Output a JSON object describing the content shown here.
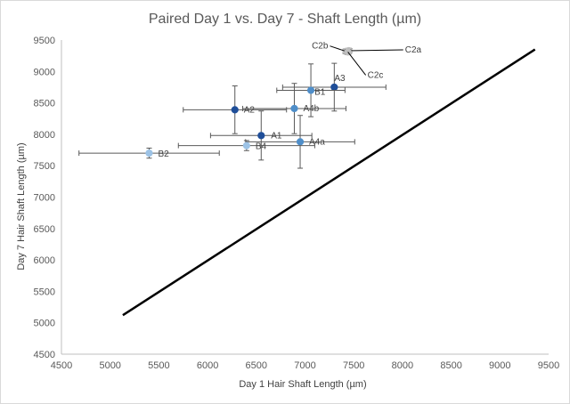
{
  "chart_data": {
    "type": "scatter",
    "title": "Paired Day 1 vs. Day 7 - Shaft Length (µm)",
    "xlabel": "Day 1 Hair Shaft Length (µm)",
    "ylabel": "Day 7 Hair Shaft Length (µm)",
    "xlim": [
      4500,
      9500
    ],
    "ylim": [
      4500,
      9500
    ],
    "xticks": [
      "4500",
      "5000",
      "5500",
      "6000",
      "6500",
      "7000",
      "7500",
      "8000",
      "8500",
      "9000",
      "9500"
    ],
    "yticks": [
      "4500",
      "5000",
      "5500",
      "6000",
      "6500",
      "7000",
      "7500",
      "8000",
      "8500",
      "9000",
      "9500"
    ],
    "grid": false,
    "reference_line": {
      "x": [
        5130,
        9360
      ],
      "y": [
        5120,
        9350
      ],
      "color": "#000000"
    },
    "points": [
      {
        "label": "A1",
        "x": 6550,
        "y": 7980,
        "xerr": 520,
        "yerr": 390,
        "color": "#1f4e99"
      },
      {
        "label": "A2",
        "x": 6280,
        "y": 8390,
        "xerr": 530,
        "yerr": 380,
        "color": "#1f4e99"
      },
      {
        "label": "A3",
        "x": 7300,
        "y": 8750,
        "xerr": 530,
        "yerr": 380,
        "color": "#1f4e99"
      },
      {
        "label": "A4a",
        "x": 6950,
        "y": 7880,
        "xerr": 560,
        "yerr": 420,
        "color": "#4f8ec9"
      },
      {
        "label": "A4b",
        "x": 6890,
        "y": 8410,
        "xerr": 530,
        "yerr": 400,
        "color": "#4f8ec9"
      },
      {
        "label": "B1",
        "x": 7060,
        "y": 8700,
        "xerr": 350,
        "yerr": 420,
        "color": "#4f8ec9"
      },
      {
        "label": "B2",
        "x": 5400,
        "y": 7700,
        "xerr": 720,
        "yerr": 80,
        "color": "#9dc3e6"
      },
      {
        "label": "B4",
        "x": 6400,
        "y": 7820,
        "xerr": 700,
        "yerr": 80,
        "color": "#9dc3e6"
      },
      {
        "label": "C2a",
        "x": 7450,
        "y": 9330,
        "xerr": 30,
        "yerr": 40,
        "color": "#bfbfbf"
      },
      {
        "label": "C2b",
        "x": 7420,
        "y": 9320,
        "xerr": 30,
        "yerr": 40,
        "color": "#bfbfbf"
      },
      {
        "label": "C2c",
        "x": 7440,
        "y": 9310,
        "xerr": 30,
        "yerr": 40,
        "color": "#bfbfbf"
      }
    ]
  }
}
